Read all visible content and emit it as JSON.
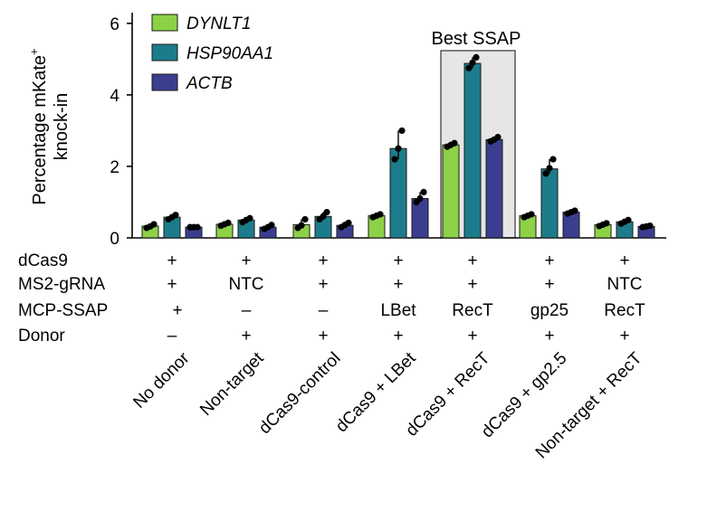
{
  "chart_data": {
    "type": "bar",
    "ylabel": "Percentage mKate",
    "ylabel_sup": "+",
    "ylabel_line2": "knock-in",
    "ylim": [
      0,
      6.3
    ],
    "yticks": [
      0,
      2,
      4,
      6
    ],
    "categories": [
      "No donor",
      "Non-target",
      "dCas9-control",
      "dCas9 + LBet",
      "dCas9 + RecT",
      "dCas9 + gp2.5",
      "Non-target + RecT"
    ],
    "series": [
      {
        "name": "DYNLT1",
        "color": "#8cd146",
        "values": [
          0.33,
          0.38,
          0.37,
          0.62,
          2.6,
          0.62,
          0.37
        ],
        "points": [
          [
            0.28,
            0.32,
            0.38
          ],
          [
            0.34,
            0.38,
            0.42
          ],
          [
            0.28,
            0.35,
            0.52
          ],
          [
            0.58,
            0.62,
            0.66
          ],
          [
            2.55,
            2.6,
            2.65
          ],
          [
            0.58,
            0.62,
            0.66
          ],
          [
            0.33,
            0.37,
            0.41
          ]
        ]
      },
      {
        "name": "HSP90AA1",
        "color": "#1d7c8b",
        "values": [
          0.58,
          0.5,
          0.6,
          2.5,
          4.88,
          1.93,
          0.45
        ],
        "points": [
          [
            0.52,
            0.58,
            0.64
          ],
          [
            0.44,
            0.5,
            0.55
          ],
          [
            0.52,
            0.6,
            0.72
          ],
          [
            2.2,
            2.5,
            3.0
          ],
          [
            4.75,
            4.9,
            5.05
          ],
          [
            1.8,
            1.95,
            2.2
          ],
          [
            0.4,
            0.45,
            0.5
          ]
        ]
      },
      {
        "name": "ACTB",
        "color": "#3b3e8f",
        "values": [
          0.3,
          0.3,
          0.35,
          1.1,
          2.75,
          0.72,
          0.32
        ],
        "points": [
          [
            0.3,
            0.3,
            0.3
          ],
          [
            0.25,
            0.3,
            0.36
          ],
          [
            0.3,
            0.36,
            0.42
          ],
          [
            1.0,
            1.1,
            1.28
          ],
          [
            2.7,
            2.75,
            2.82
          ],
          [
            0.68,
            0.72,
            0.76
          ],
          [
            0.3,
            0.32,
            0.34
          ]
        ]
      }
    ],
    "highlight": {
      "label": "Best SSAP",
      "category_index": 4
    },
    "condition_table": {
      "rows": [
        {
          "label": "dCas9",
          "cells": [
            "+",
            "+",
            "+",
            "+",
            "+",
            "+",
            "+"
          ]
        },
        {
          "label": "MS2-gRNA",
          "cells": [
            "+",
            "NTC",
            "+",
            "+",
            "+",
            "+",
            "NTC"
          ]
        },
        {
          "label": "MCP-SSAP",
          "cells": [
            "+",
            "–",
            "–",
            "LBet",
            "RecT",
            "gp25",
            "RecT"
          ]
        },
        {
          "label": "Donor",
          "cells": [
            "–",
            "+",
            "+",
            "+",
            "+",
            "+",
            "+"
          ]
        }
      ]
    }
  }
}
